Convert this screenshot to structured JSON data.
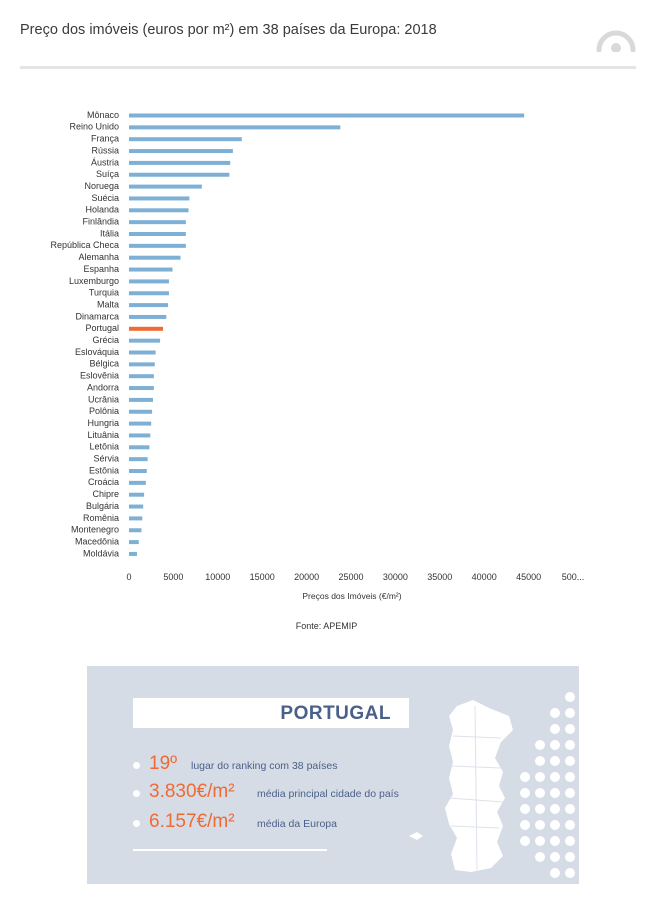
{
  "header": {
    "title": "Preço dos imóveis (euros por m²) em 38 países da Europa: 2018"
  },
  "colors": {
    "bar": "#7eb0d5",
    "highlight": "#f06a34",
    "panel": "#d5dce5",
    "panel_text": "#4b6089"
  },
  "chart_data": {
    "type": "bar",
    "orientation": "horizontal",
    "categories": [
      "Mônaco",
      "Reino Unido",
      "França",
      "Rússia",
      "Áustria",
      "Suíça",
      "Noruega",
      "Suécia",
      "Holanda",
      "Finlândia",
      "Itália",
      "República Checa",
      "Alemanha",
      "Espanha",
      "Luxemburgo",
      "Turquia",
      "Malta",
      "Dinamarca",
      "Portugal",
      "Grécia",
      "Eslováquia",
      "Bélgica",
      "Eslovênia",
      "Andorra",
      "Ucrânia",
      "Polônia",
      "Hungria",
      "Lituânia",
      "Letônia",
      "Sérvia",
      "Estônia",
      "Croácia",
      "Chipre",
      "Bulgária",
      "Romênia",
      "Montenegro",
      "Macedônia",
      "Moldávia"
    ],
    "values": [
      44500,
      23800,
      12700,
      11700,
      11400,
      11300,
      8200,
      6800,
      6700,
      6400,
      6400,
      6400,
      5800,
      4900,
      4500,
      4500,
      4400,
      4200,
      3830,
      3500,
      3000,
      2900,
      2800,
      2800,
      2700,
      2600,
      2500,
      2400,
      2300,
      2100,
      2000,
      1900,
      1700,
      1600,
      1500,
      1400,
      1100,
      900
    ],
    "highlight": "Portugal",
    "xlabel": "Preços dos Imóveis (€/m²)",
    "ylabel": "",
    "xlim": [
      0,
      50000
    ],
    "xticks": [
      "0",
      "5000",
      "10000",
      "15000",
      "20000",
      "25000",
      "30000",
      "35000",
      "40000",
      "45000",
      "500..."
    ],
    "grid": false,
    "legend": "none"
  },
  "source": "Fonte: APEMIP",
  "panel": {
    "banner": "PORTUGAL",
    "stats": [
      {
        "big": "19º",
        "small": "lugar do ranking com 38 países"
      },
      {
        "big": "3.830€/m²",
        "small": "média principal cidade do país"
      },
      {
        "big": "6.157€/m²",
        "small": "média da Europa"
      }
    ]
  }
}
